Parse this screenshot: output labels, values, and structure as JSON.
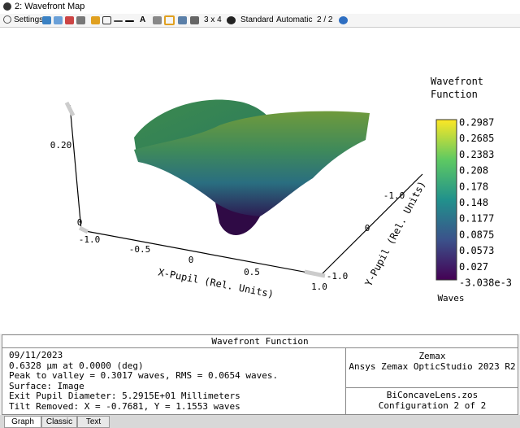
{
  "window": {
    "title": "2: Wavefront Map"
  },
  "toolbar": {
    "settings": "Settings",
    "layout": "3 x 4",
    "style": "Standard",
    "scale": "Automatic",
    "page": "2 / 2"
  },
  "plot": {
    "vertical_ticks": [
      "0.20",
      "0"
    ],
    "x_ticks": [
      "-1.0",
      "-0.5",
      "0",
      "0.5",
      "1.0"
    ],
    "x_label": "X-Pupil (Rel. Units)",
    "y_ticks": [
      "-1.0",
      "0",
      "-1.0"
    ],
    "y_label": "Y-Pupil (Rel. Units)",
    "legend": {
      "title": "Wavefront Function",
      "labels": [
        "0.2987",
        "0.2685",
        "0.2383",
        "0.208",
        "0.178",
        "0.148",
        "0.1177",
        "0.0875",
        "0.0573",
        "0.027",
        "-3.038e-3"
      ],
      "unit": "Waves"
    }
  },
  "info": {
    "title": "Wavefront Function",
    "lines": [
      "09/11/2023",
      "0.6328 µm at 0.0000 (deg)",
      "Peak to valley = 0.3017 waves, RMS = 0.0654 waves.",
      "Surface: Image",
      "Exit Pupil Diameter: 5.2915E+01 Millimeters",
      "Tilt Removed: X = -0.7681, Y = 1.1553 waves"
    ],
    "company": "Zemax",
    "product": "Ansys Zemax OpticStudio 2023 R2",
    "file": "BiConcaveLens.zos",
    "config": "Configuration 2 of 2"
  },
  "tabs": [
    "Graph",
    "Classic",
    "Text"
  ]
}
